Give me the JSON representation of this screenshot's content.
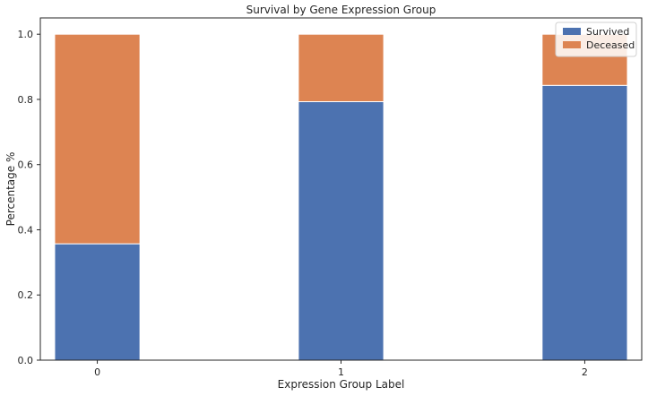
{
  "chart_data": {
    "type": "bar",
    "stacked": true,
    "title": "Survival by Gene Expression Group",
    "xlabel": "Expression Group Label",
    "ylabel": "Percentage %",
    "categories": [
      "0",
      "1",
      "2"
    ],
    "series": [
      {
        "name": "Survived",
        "values": [
          0.357,
          0.793,
          0.843
        ],
        "color": "#4c72b0"
      },
      {
        "name": "Deceased",
        "values": [
          0.643,
          0.207,
          0.157
        ],
        "color": "#dd8452"
      }
    ],
    "ylim": [
      0,
      1.05
    ],
    "yticks": [
      "0.0",
      "0.2",
      "0.4",
      "0.6",
      "0.8",
      "1.0"
    ],
    "grid": false,
    "legend_position": "top-right"
  }
}
